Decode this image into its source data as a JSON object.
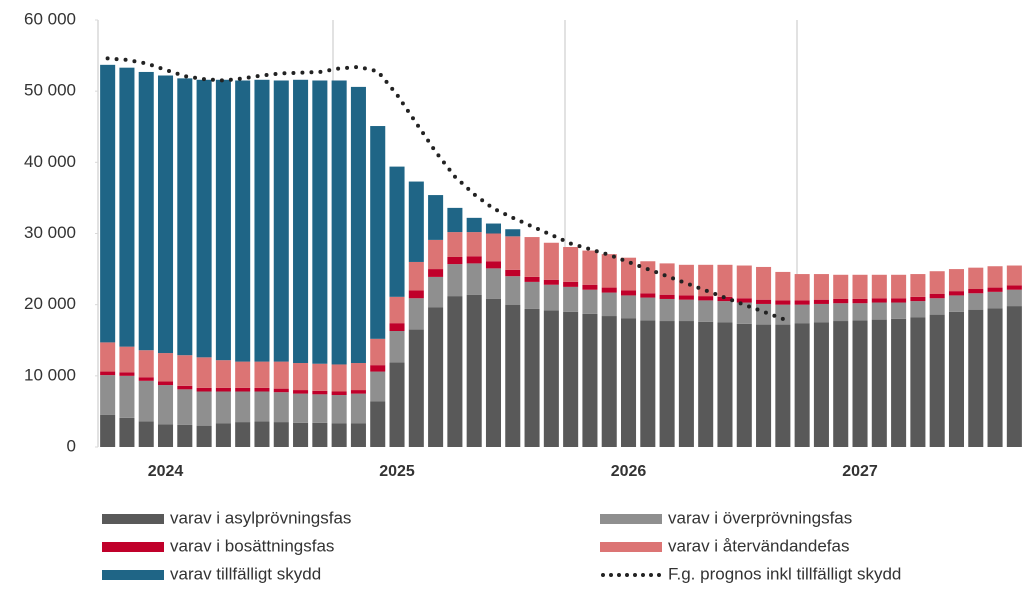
{
  "chart_data": {
    "type": "bar",
    "stacked": true,
    "categories": [
      null,
      null,
      null,
      "2024",
      null,
      null,
      null,
      null,
      null,
      null,
      null,
      null,
      null,
      null,
      null,
      "2025",
      null,
      null,
      null,
      null,
      null,
      null,
      null,
      null,
      null,
      null,
      null,
      "2026",
      null,
      null,
      null,
      null,
      null,
      null,
      null,
      null,
      null,
      null,
      null,
      "2027",
      null,
      null,
      null,
      null,
      null,
      null,
      null,
      null
    ],
    "ylim": [
      0,
      60000
    ],
    "yticks": [
      0,
      {
        "value": 10000,
        "label": "10 000"
      },
      {
        "value": 20000,
        "label": "20 000"
      },
      {
        "value": 30000,
        "label": "30 000"
      },
      {
        "value": 40000,
        "label": "40 000"
      },
      {
        "value": 50000,
        "label": "50 000"
      },
      {
        "value": 60000,
        "label": "60 000"
      }
    ],
    "series": [
      {
        "name": "varav i asylprövningsfas",
        "color": "#595959",
        "values": [
          4500,
          4100,
          3600,
          3200,
          3100,
          3000,
          3300,
          3500,
          3600,
          3500,
          3400,
          3400,
          3300,
          3300,
          6400,
          11900,
          16500,
          19600,
          21200,
          21400,
          20800,
          20000,
          19400,
          19200,
          19000,
          18700,
          18400,
          18100,
          17800,
          17700,
          17700,
          17600,
          17500,
          17300,
          17200,
          17200,
          17400,
          17500,
          17700,
          17800,
          17900,
          18000,
          18200,
          18600,
          19000,
          19300,
          19500,
          19800
        ]
      },
      {
        "name": "varav i överprövningsfas",
        "color": "#8f8f8f",
        "values": [
          5600,
          5900,
          5700,
          5500,
          5000,
          4800,
          4500,
          4300,
          4200,
          4200,
          4100,
          4000,
          4000,
          4200,
          4200,
          4400,
          4400,
          4300,
          4500,
          4400,
          4300,
          4000,
          3800,
          3600,
          3500,
          3400,
          3300,
          3200,
          3200,
          3100,
          3000,
          3000,
          3000,
          3000,
          2900,
          2800,
          2600,
          2600,
          2500,
          2400,
          2400,
          2300,
          2300,
          2300,
          2300,
          2300,
          2300,
          2300
        ]
      },
      {
        "name": "varav i bosättningsfas",
        "color": "#c0002a",
        "values": [
          500,
          500,
          500,
          500,
          500,
          500,
          500,
          500,
          500,
          500,
          500,
          500,
          500,
          500,
          900,
          1100,
          1100,
          1100,
          1000,
          1000,
          1000,
          900,
          700,
          700,
          700,
          700,
          700,
          700,
          600,
          600,
          600,
          600,
          600,
          600,
          600,
          600,
          600,
          600,
          600,
          600,
          600,
          600,
          600,
          600,
          600,
          600,
          600,
          600
        ]
      },
      {
        "name": "varav i återvändandefas",
        "color": "#dc7474",
        "values": [
          4100,
          3600,
          3800,
          4000,
          4300,
          4300,
          3900,
          3700,
          3700,
          3800,
          3800,
          3800,
          3800,
          3800,
          3700,
          3700,
          4000,
          4100,
          3500,
          3400,
          3900,
          4700,
          5600,
          5200,
          4900,
          4800,
          4700,
          4600,
          4500,
          4400,
          4300,
          4400,
          4500,
          4600,
          4600,
          4000,
          3700,
          3600,
          3400,
          3400,
          3300,
          3300,
          3200,
          3200,
          3100,
          3000,
          3000,
          2800
        ]
      },
      {
        "name": "varav tillfälligt skydd",
        "color": "#1f6586",
        "values": [
          39000,
          39200,
          39100,
          39000,
          38900,
          39000,
          39400,
          39500,
          39600,
          39500,
          39800,
          39800,
          39900,
          38800,
          29900,
          18300,
          11300,
          6300,
          3400,
          2000,
          1400,
          1000,
          0,
          0,
          0,
          0,
          0,
          0,
          0,
          0,
          0,
          0,
          0,
          0,
          0,
          0,
          0,
          0,
          0,
          0,
          0,
          0,
          0,
          0,
          0,
          0,
          0,
          0
        ]
      },
      {
        "name": "F.g. prognos inkl tillfälligt skydd",
        "color": "#222222",
        "type": "line",
        "values": [
          54600,
          54400,
          53900,
          53000,
          52100,
          51700,
          51500,
          51800,
          52200,
          52500,
          52600,
          52700,
          53200,
          53400,
          52800,
          49500,
          45500,
          41500,
          38000,
          35500,
          33500,
          32200,
          31000,
          29800,
          28600,
          27800,
          27000,
          26000,
          25000,
          24000,
          23000,
          22000,
          21000,
          20000,
          19000,
          18000,
          null,
          null,
          null,
          null,
          null,
          null,
          null,
          null,
          null,
          null,
          null,
          null
        ]
      }
    ]
  }
}
